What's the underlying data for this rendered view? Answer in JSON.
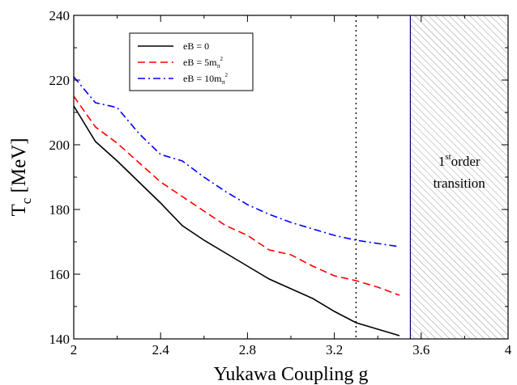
{
  "chart_data": {
    "type": "line",
    "xlabel": "Yukawa Coupling g",
    "ylabel": {
      "main": "T",
      "sub": "c",
      "rest": " [MeV]"
    },
    "xlim": [
      2,
      4
    ],
    "ylim": [
      140,
      240
    ],
    "xticks": [
      "2",
      "2.4",
      "2.8",
      "3.2",
      "3.6",
      "4"
    ],
    "yticks": [
      "140",
      "160",
      "180",
      "200",
      "220",
      "240"
    ],
    "xtick_values": [
      2,
      2.4,
      2.8,
      3.2,
      3.6,
      4
    ],
    "ytick_values": [
      140,
      160,
      180,
      200,
      220,
      240
    ],
    "grid": false,
    "legend_position": "top-left",
    "series": [
      {
        "name": "eB = 0",
        "color": "#000000",
        "style": "solid",
        "x": [
          2.0,
          2.1,
          2.2,
          2.3,
          2.4,
          2.5,
          2.6,
          2.7,
          2.8,
          2.9,
          3.0,
          3.1,
          3.2,
          3.3,
          3.4,
          3.5
        ],
        "y": [
          212,
          201,
          195,
          188.5,
          182,
          175,
          170.5,
          166.5,
          162.5,
          158.5,
          155.5,
          152.5,
          148.5,
          145,
          143,
          141
        ]
      },
      {
        "name": "eB = 5m",
        "name_sub": "π",
        "name_sup": "2",
        "color": "#ff0000",
        "style": "dashed",
        "x": [
          2.0,
          2.1,
          2.2,
          2.3,
          2.4,
          2.5,
          2.6,
          2.7,
          2.8,
          2.9,
          3.0,
          3.1,
          3.2,
          3.3,
          3.4,
          3.5
        ],
        "y": [
          215,
          205.5,
          200.5,
          194.5,
          188.5,
          184,
          179.5,
          175,
          172,
          167.5,
          166,
          162.5,
          159.5,
          158,
          156,
          153.5
        ]
      },
      {
        "name": "eB = 10m",
        "name_sub": "π",
        "name_sup": "2",
        "color": "#0000ff",
        "style": "dashdot",
        "x": [
          2.0,
          2.1,
          2.2,
          2.3,
          2.4,
          2.5,
          2.6,
          2.7,
          2.8,
          2.9,
          3.0,
          3.1,
          3.2,
          3.3,
          3.4,
          3.5
        ],
        "y": [
          221,
          213,
          211.5,
          203.5,
          197,
          195,
          190,
          185.5,
          181.5,
          178.5,
          176,
          174,
          172,
          170.5,
          169.5,
          168.5
        ]
      }
    ],
    "reference_lines": [
      {
        "axis": "x",
        "value": 3.3,
        "style": "dotted",
        "color": "#000000"
      }
    ],
    "shaded_region": {
      "x_start": 3.55,
      "x_end": 4,
      "pattern": "hatched",
      "border_color": "#000080",
      "annotation": {
        "line1": "1",
        "line1_sup": "st",
        "line1_rest": "order",
        "line2": "transition"
      }
    }
  }
}
